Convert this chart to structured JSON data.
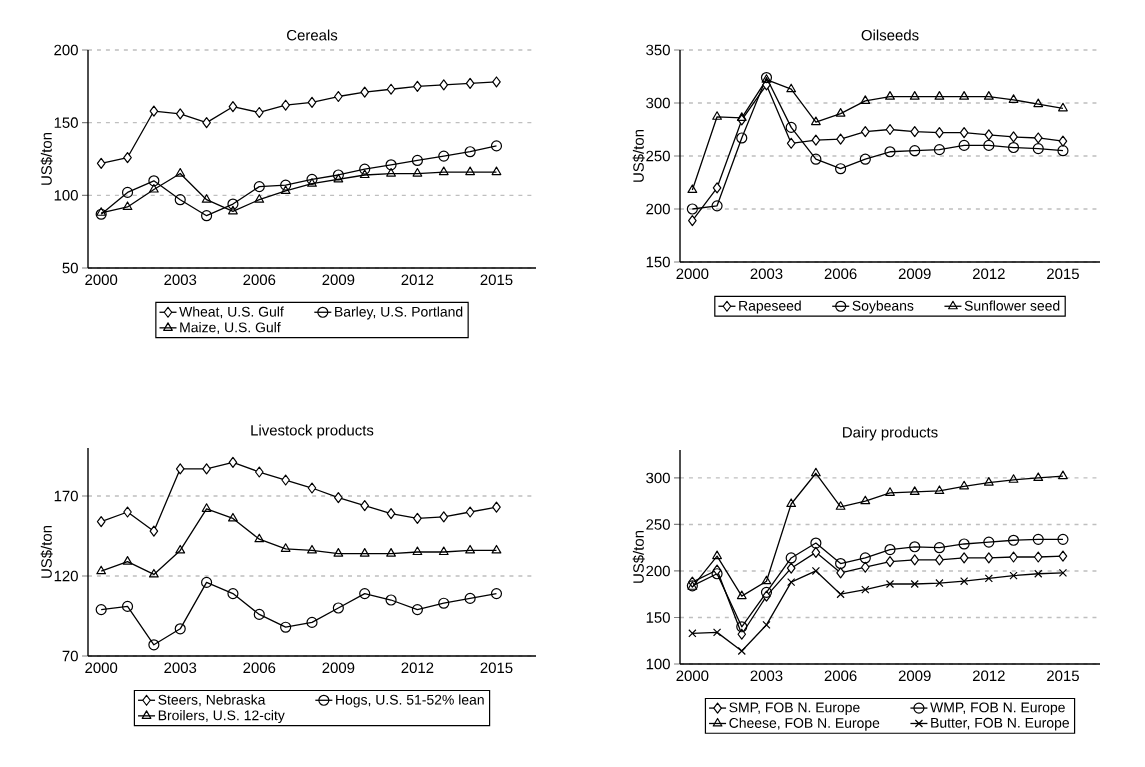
{
  "chart_data": [
    {
      "type": "line",
      "title": "Cereals",
      "ylabel": "US$/ton",
      "x": [
        2000,
        2001,
        2002,
        2003,
        2004,
        2005,
        2006,
        2007,
        2008,
        2009,
        2010,
        2011,
        2012,
        2013,
        2014,
        2015
      ],
      "xlim": [
        1999.5,
        2016.5
      ],
      "xticks": [
        2000,
        2003,
        2006,
        2009,
        2012,
        2015
      ],
      "ylim": [
        50,
        200
      ],
      "yticks": [
        50,
        100,
        150,
        200
      ],
      "grid": "y",
      "legend": "bottom",
      "series": [
        {
          "name": "Wheat, U.S. Gulf",
          "color": "#000000",
          "marker": "diamond",
          "values": [
            122,
            126,
            158,
            156,
            150,
            161,
            157,
            162,
            164,
            168,
            171,
            173,
            175,
            176,
            177,
            178
          ]
        },
        {
          "name": "Barley, U.S. Portland",
          "color": "#000000",
          "marker": "circle",
          "values": [
            87,
            102,
            110,
            97,
            86,
            94,
            106,
            107,
            111,
            114,
            118,
            121,
            124,
            127,
            130,
            134
          ]
        },
        {
          "name": "Maize, U.S. Gulf",
          "color": "#000000",
          "marker": "triangle",
          "values": [
            88,
            92,
            104,
            115,
            97,
            89,
            97,
            103,
            108,
            111,
            114,
            115,
            115,
            116,
            116,
            116
          ]
        }
      ]
    },
    {
      "type": "line",
      "title": "Oilseeds",
      "ylabel": "US$/ton",
      "x": [
        2000,
        2001,
        2002,
        2003,
        2004,
        2005,
        2006,
        2007,
        2008,
        2009,
        2010,
        2011,
        2012,
        2013,
        2014,
        2015
      ],
      "xlim": [
        1999.5,
        2016.5
      ],
      "xticks": [
        2000,
        2003,
        2006,
        2009,
        2012,
        2015
      ],
      "ylim": [
        150,
        350
      ],
      "yticks": [
        150,
        200,
        250,
        300,
        350
      ],
      "grid": "y",
      "legend": "bottom",
      "series": [
        {
          "name": "Rapeseed",
          "color": "#000000",
          "marker": "diamond",
          "values": [
            189,
            220,
            284,
            317,
            262,
            265,
            266,
            273,
            275,
            273,
            272,
            272,
            270,
            268,
            267,
            264
          ]
        },
        {
          "name": "Soybeans",
          "color": "#000000",
          "marker": "circle",
          "values": [
            200,
            203,
            267,
            324,
            277,
            247,
            238,
            247,
            254,
            255,
            256,
            260,
            260,
            258,
            257,
            255
          ]
        },
        {
          "name": "Sunflower seed",
          "color": "#000000",
          "marker": "triangle",
          "values": [
            218,
            287,
            286,
            322,
            313,
            282,
            290,
            302,
            306,
            306,
            306,
            306,
            306,
            303,
            299,
            295
          ]
        }
      ]
    },
    {
      "type": "line",
      "title": "Livestock products",
      "ylabel": "US$/ton",
      "x": [
        2000,
        2001,
        2002,
        2003,
        2004,
        2005,
        2006,
        2007,
        2008,
        2009,
        2010,
        2011,
        2012,
        2013,
        2014,
        2015
      ],
      "xlim": [
        1999.5,
        2016.5
      ],
      "xticks": [
        2000,
        2003,
        2006,
        2009,
        2012,
        2015
      ],
      "ylim": [
        70,
        200
      ],
      "yticks": [
        70,
        120,
        170
      ],
      "grid": "y",
      "legend": "bottom",
      "series": [
        {
          "name": "Steers, Nebraska",
          "color": "#000000",
          "marker": "diamond",
          "values": [
            154,
            160,
            148,
            187,
            187,
            191,
            185,
            180,
            175,
            169,
            164,
            159,
            156,
            157,
            160,
            163
          ]
        },
        {
          "name": "Hogs, U.S. 51-52% lean",
          "color": "#000000",
          "marker": "circle",
          "values": [
            99,
            101,
            77,
            87,
            116,
            109,
            96,
            88,
            91,
            100,
            109,
            105,
            99,
            103,
            106,
            109
          ]
        },
        {
          "name": "Broilers, U.S. 12-city",
          "color": "#000000",
          "marker": "triangle",
          "values": [
            123,
            129,
            121,
            136,
            162,
            156,
            143,
            137,
            136,
            134,
            134,
            134,
            135,
            135,
            136,
            136
          ]
        }
      ]
    },
    {
      "type": "line",
      "title": "Dairy products",
      "ylabel": "US$/ton",
      "x": [
        2000,
        2001,
        2002,
        2003,
        2004,
        2005,
        2006,
        2007,
        2008,
        2009,
        2010,
        2011,
        2012,
        2013,
        2014,
        2015
      ],
      "xlim": [
        1999.5,
        2016.5
      ],
      "xticks": [
        2000,
        2003,
        2006,
        2009,
        2012,
        2015
      ],
      "ylim": [
        100,
        330
      ],
      "yticks": [
        100,
        150,
        200,
        250,
        300
      ],
      "grid": "y",
      "legend": "bottom",
      "series": [
        {
          "name": "SMP, FOB N. Europe",
          "color": "#000000",
          "marker": "diamond",
          "values": [
            188,
            201,
            132,
            173,
            203,
            220,
            198,
            204,
            210,
            212,
            212,
            214,
            214,
            215,
            215,
            216
          ]
        },
        {
          "name": "WMP, FOB N. Europe",
          "color": "#000000",
          "marker": "circle",
          "values": [
            184,
            197,
            140,
            177,
            214,
            230,
            208,
            214,
            223,
            226,
            225,
            229,
            231,
            233,
            234,
            234
          ]
        },
        {
          "name": "Cheese, FOB N. Europe",
          "color": "#000000",
          "marker": "triangle",
          "values": [
            183,
            216,
            173,
            189,
            272,
            305,
            269,
            275,
            284,
            285,
            286,
            291,
            295,
            298,
            300,
            302
          ]
        },
        {
          "name": "Butter, FOB N. Europe",
          "color": "#000000",
          "marker": "cross",
          "values": [
            133,
            134,
            114,
            142,
            188,
            200,
            175,
            180,
            186,
            186,
            187,
            189,
            192,
            195,
            197,
            198
          ]
        }
      ]
    }
  ]
}
